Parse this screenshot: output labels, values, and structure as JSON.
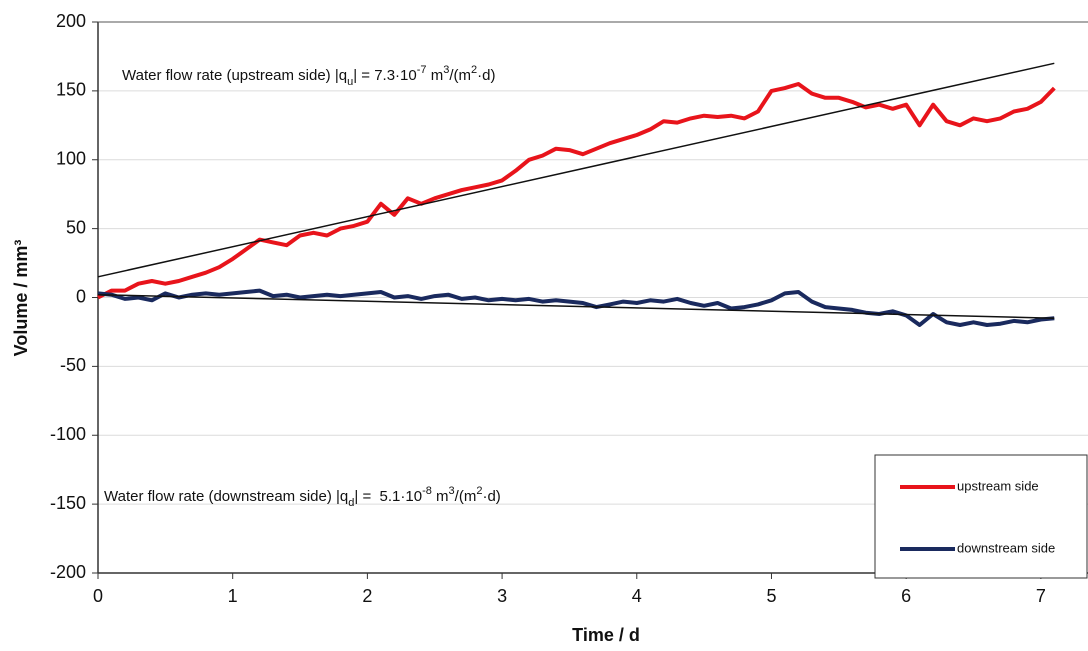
{
  "chart_data": {
    "type": "line",
    "x_label": "Time / d",
    "y_label": "Volume / mm³",
    "x": [
      0,
      0.1,
      0.2,
      0.3,
      0.4,
      0.5,
      0.6,
      0.7,
      0.8,
      0.9,
      1,
      1.1,
      1.2,
      1.3,
      1.4,
      1.5,
      1.6,
      1.7,
      1.8,
      1.9,
      2,
      2.1,
      2.2,
      2.3,
      2.4,
      2.5,
      2.6,
      2.7,
      2.8,
      2.9,
      3,
      3.1,
      3.2,
      3.3,
      3.4,
      3.5,
      3.6,
      3.7,
      3.8,
      3.9,
      4,
      4.1,
      4.2,
      4.3,
      4.4,
      4.5,
      4.6,
      4.7,
      4.8,
      4.9,
      5,
      5.1,
      5.2,
      5.3,
      5.4,
      5.5,
      5.6,
      5.7,
      5.8,
      5.9,
      6,
      6.1,
      6.2,
      6.3,
      6.4,
      6.5,
      6.6,
      6.7,
      6.8,
      6.9,
      7,
      7.1
    ],
    "series": [
      {
        "name": "upstream side",
        "color": "#e8141b",
        "values": [
          0,
          5,
          5,
          10,
          12,
          10,
          12,
          15,
          18,
          22,
          28,
          35,
          42,
          40,
          38,
          45,
          47,
          45,
          50,
          52,
          55,
          68,
          60,
          72,
          68,
          72,
          75,
          78,
          80,
          82,
          85,
          92,
          100,
          103,
          108,
          107,
          104,
          108,
          112,
          115,
          118,
          122,
          128,
          127,
          130,
          132,
          131,
          132,
          130,
          135,
          150,
          152,
          155,
          148,
          145,
          145,
          142,
          138,
          140,
          137,
          140,
          125,
          140,
          128,
          125,
          130,
          128,
          130,
          135,
          137,
          142,
          152
        ]
      },
      {
        "name": "downstream side",
        "color": "#1a2a5e",
        "values": [
          3,
          2,
          -1,
          0,
          -2,
          3,
          0,
          2,
          3,
          2,
          3,
          4,
          5,
          1,
          2,
          0,
          1,
          2,
          1,
          2,
          3,
          4,
          0,
          1,
          -1,
          1,
          2,
          -1,
          0,
          -2,
          -1,
          -2,
          -1,
          -3,
          -2,
          -3,
          -4,
          -7,
          -5,
          -3,
          -4,
          -2,
          -3,
          -1,
          -4,
          -6,
          -4,
          -8,
          -7,
          -5,
          -2,
          3,
          4,
          -3,
          -7,
          -8,
          -9,
          -11,
          -12,
          -10,
          -13,
          -20,
          -12,
          -18,
          -20,
          -18,
          -20,
          -19,
          -17,
          -18,
          -16,
          -15
        ]
      }
    ],
    "trendlines": [
      {
        "color": "#111111",
        "x": [
          0,
          7.1
        ],
        "values": [
          15,
          170
        ]
      },
      {
        "color": "#111111",
        "x": [
          0,
          7.1
        ],
        "values": [
          2,
          -15
        ]
      }
    ],
    "annotations": [
      {
        "parts": [
          {
            "text": "Water flow rate (upstream side) |q",
            "style": "normal"
          },
          {
            "text": "u",
            "style": "sub"
          },
          {
            "text": "| = 7.3·10",
            "style": "normal"
          },
          {
            "text": "-7",
            "style": "sup"
          },
          {
            "text": " m",
            "style": "normal"
          },
          {
            "text": "3",
            "style": "sup"
          },
          {
            "text": "/(m",
            "style": "normal"
          },
          {
            "text": "2",
            "style": "sup"
          },
          {
            "text": "·d)",
            "style": "normal"
          }
        ]
      },
      {
        "parts": [
          {
            "text": "Water flow rate (downstream side) |q",
            "style": "normal"
          },
          {
            "text": "d",
            "style": "sub"
          },
          {
            "text": "| =  5.1·10",
            "style": "normal"
          },
          {
            "text": "-8",
            "style": "sup"
          },
          {
            "text": " m",
            "style": "normal"
          },
          {
            "text": "3",
            "style": "sup"
          },
          {
            "text": "/(m",
            "style": "normal"
          },
          {
            "text": "2",
            "style": "sup"
          },
          {
            "text": "·d)",
            "style": "normal"
          }
        ]
      }
    ],
    "xlim": [
      0,
      7.35
    ],
    "ylim": [
      -200,
      200
    ],
    "xticks": [
      0,
      1,
      2,
      3,
      4,
      5,
      6,
      7
    ],
    "yticks": [
      -200,
      -150,
      -100,
      -50,
      0,
      50,
      100,
      150,
      200
    ],
    "grid": true
  }
}
